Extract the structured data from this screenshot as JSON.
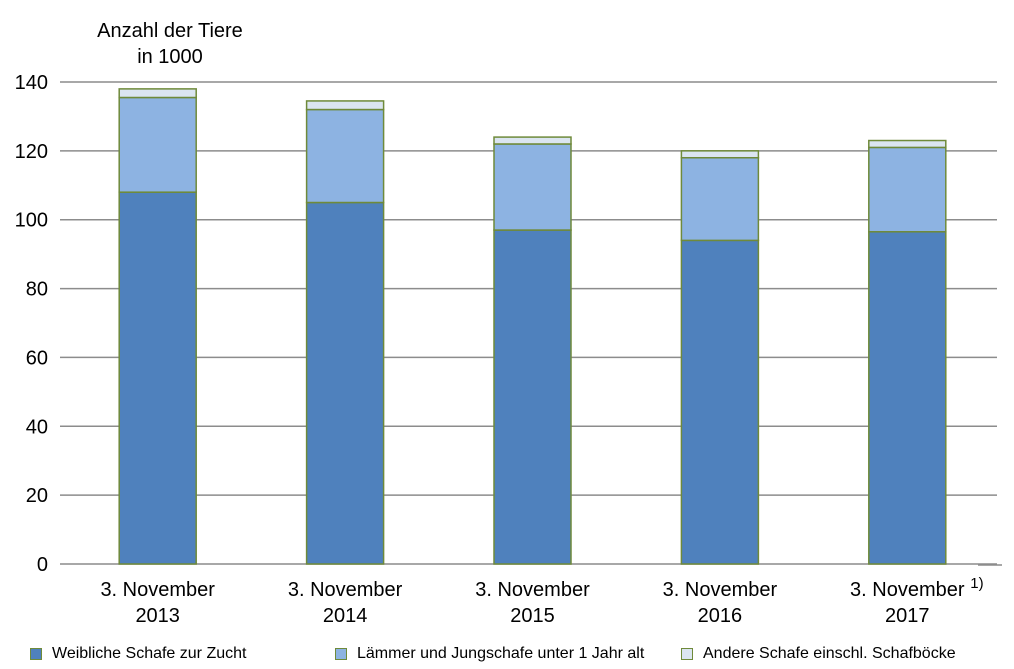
{
  "chart_data": {
    "type": "bar",
    "stacked": true,
    "ylabel_lines": [
      "Anzahl der Tiere",
      "in 1000"
    ],
    "footnote": "1)",
    "categories": [
      [
        "3. November",
        "2013"
      ],
      [
        "3. November",
        "2014"
      ],
      [
        "3. November",
        "2015"
      ],
      [
        "3. November",
        "2016"
      ],
      [
        "3. November",
        "2017"
      ]
    ],
    "ylim": [
      0,
      140
    ],
    "yticks": [
      "0",
      "20",
      "40",
      "60",
      "80",
      "100",
      "120",
      "140"
    ],
    "grid": true,
    "legend_position": "bottom",
    "series": [
      {
        "name": "Weibliche Schafe zur Zucht",
        "color": "#4f81bd",
        "values": [
          108,
          105,
          97,
          94,
          96.5
        ]
      },
      {
        "name": "Lämmer und Jungschafe unter 1 Jahr alt",
        "color": "#8db3e2",
        "values": [
          27.5,
          27,
          25,
          24,
          24.5
        ]
      },
      {
        "name": "Andere Schafe einschl. Schafböcke",
        "color": "#dbe5f1",
        "values": [
          2.5,
          2.5,
          2,
          2,
          2
        ]
      }
    ],
    "edge_color": "#6f8a3a"
  }
}
